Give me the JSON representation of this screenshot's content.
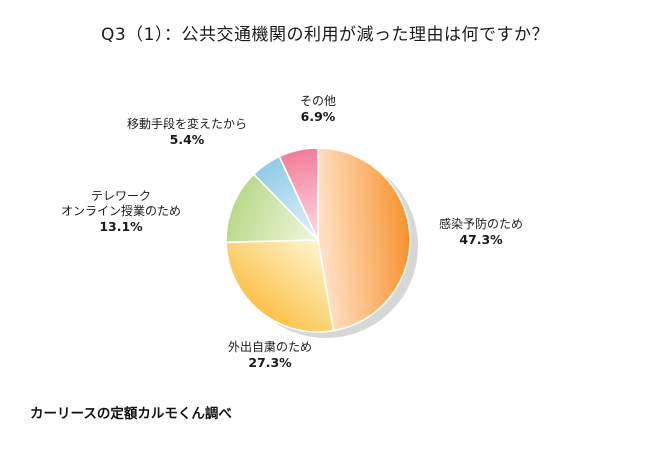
{
  "chart_data": {
    "type": "pie",
    "title": "Q3（1）：公共交通機関の利用が減った理由は何ですか？",
    "slices": [
      {
        "label_lines": [
          "感染予防のため"
        ],
        "pct_text": "47.3%",
        "value": 47.3,
        "color_light": "#ffe0c2",
        "color_dark": "#f7922e"
      },
      {
        "label_lines": [
          "外出自粛のため"
        ],
        "pct_text": "27.3%",
        "value": 27.3,
        "color_light": "#fff3c8",
        "color_dark": "#fbc14a"
      },
      {
        "label_lines": [
          "テレワーク",
          "オンライン授業のため"
        ],
        "pct_text": "13.1%",
        "value": 13.1,
        "color_light": "#eef6dc",
        "color_dark": "#b9d98a"
      },
      {
        "label_lines": [
          "移動手段を変えたから"
        ],
        "pct_text": "5.4%",
        "value": 5.4,
        "color_light": "#dff1fa",
        "color_dark": "#8fcbe6"
      },
      {
        "label_lines": [
          "その他"
        ],
        "pct_text": "6.9%",
        "value": 6.9,
        "color_light": "#ffd9e2",
        "color_dark": "#f27d97"
      }
    ],
    "start_angle_deg": 0,
    "direction": "clockwise",
    "label_placement": "outside"
  },
  "credit": "カーリースの定額カルモくん調べ"
}
